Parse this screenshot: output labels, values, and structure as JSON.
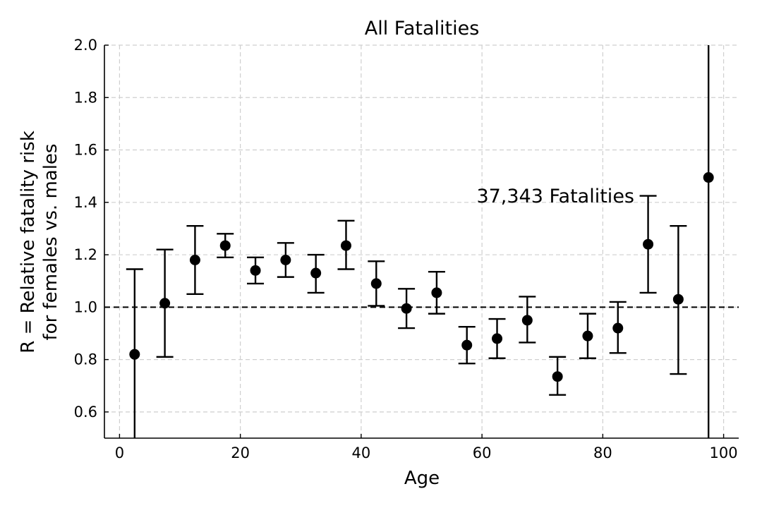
{
  "chart_data": {
    "type": "scatter",
    "title": "All Fatalities",
    "xlabel": "Age",
    "ylabel_line1": "R = Relative fatality risk",
    "ylabel_line2": "for females vs. males",
    "annotation": "37,343 Fatalities",
    "xlim": [
      -2.5,
      102.5
    ],
    "ylim": [
      0.5,
      2.0
    ],
    "xticks": [
      0,
      20,
      40,
      60,
      80,
      100
    ],
    "yticks": [
      0.6,
      0.8,
      1.0,
      1.2,
      1.4,
      1.6,
      1.8,
      2.0
    ],
    "ytick_labels": [
      "0.6",
      "0.8",
      "1.0",
      "1.2",
      "1.4",
      "1.6",
      "1.8",
      "2.0"
    ],
    "grid": true,
    "reference_line_y": 1.0,
    "points": [
      {
        "x": 2.5,
        "y": 0.82,
        "lo": 0.45,
        "hi": 1.145
      },
      {
        "x": 7.5,
        "y": 1.015,
        "lo": 0.81,
        "hi": 1.22
      },
      {
        "x": 12.5,
        "y": 1.18,
        "lo": 1.05,
        "hi": 1.31
      },
      {
        "x": 17.5,
        "y": 1.235,
        "lo": 1.19,
        "hi": 1.28
      },
      {
        "x": 22.5,
        "y": 1.14,
        "lo": 1.09,
        "hi": 1.19
      },
      {
        "x": 27.5,
        "y": 1.18,
        "lo": 1.115,
        "hi": 1.245
      },
      {
        "x": 32.5,
        "y": 1.13,
        "lo": 1.055,
        "hi": 1.2
      },
      {
        "x": 37.5,
        "y": 1.235,
        "lo": 1.145,
        "hi": 1.33
      },
      {
        "x": 42.5,
        "y": 1.09,
        "lo": 1.005,
        "hi": 1.175
      },
      {
        "x": 47.5,
        "y": 0.995,
        "lo": 0.92,
        "hi": 1.07
      },
      {
        "x": 52.5,
        "y": 1.055,
        "lo": 0.975,
        "hi": 1.135
      },
      {
        "x": 57.5,
        "y": 0.855,
        "lo": 0.785,
        "hi": 0.925
      },
      {
        "x": 62.5,
        "y": 0.88,
        "lo": 0.805,
        "hi": 0.955
      },
      {
        "x": 67.5,
        "y": 0.95,
        "lo": 0.865,
        "hi": 1.04
      },
      {
        "x": 72.5,
        "y": 0.735,
        "lo": 0.665,
        "hi": 0.81
      },
      {
        "x": 77.5,
        "y": 0.89,
        "lo": 0.805,
        "hi": 0.975
      },
      {
        "x": 82.5,
        "y": 0.92,
        "lo": 0.825,
        "hi": 1.02
      },
      {
        "x": 87.5,
        "y": 1.24,
        "lo": 1.055,
        "hi": 1.425
      },
      {
        "x": 92.5,
        "y": 1.03,
        "lo": 0.745,
        "hi": 1.31
      },
      {
        "x": 97.5,
        "y": 1.495,
        "lo": 0.45,
        "hi": 2.05
      }
    ]
  }
}
